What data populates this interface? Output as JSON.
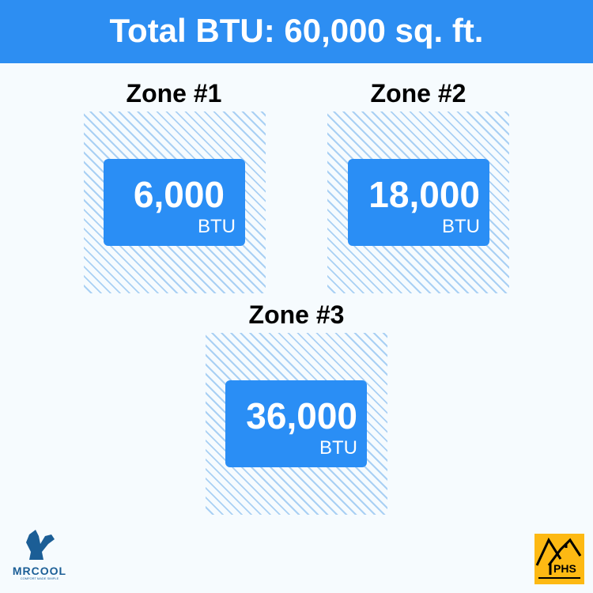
{
  "header": {
    "title": "Total BTU: 60,000 sq. ft."
  },
  "zones": [
    {
      "label": "Zone #1",
      "value": "6,000",
      "unit": "BTU"
    },
    {
      "label": "Zone #2",
      "value": "18,000",
      "unit": "BTU"
    },
    {
      "label": "Zone #3",
      "value": "36,000",
      "unit": "BTU"
    }
  ],
  "logos": {
    "mrcool": "MRCOOL",
    "mrcool_tagline": "COMFORT MADE SIMPLE",
    "phs": "PHS"
  },
  "colors": {
    "accent": "#2a8ef5",
    "hatch": "#a9d0f4",
    "phs_bg": "#fdb913"
  }
}
